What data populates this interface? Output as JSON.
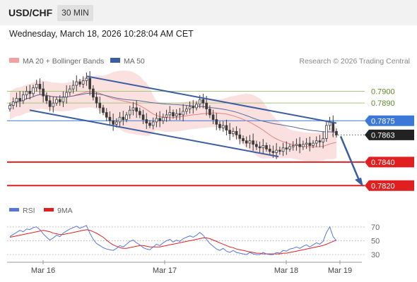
{
  "header": {
    "symbol": "USD/CHF",
    "timeframe": "30 MIN",
    "datetime": "Wednesday, March 18, 2026 10:28:04 AM CET"
  },
  "legend": {
    "ma20_bb": "MA 20 + Bollinger Bands",
    "ma50": "MA 50",
    "credit": "Research © 2026 Trading Central",
    "rsi": "RSI",
    "ma9": "9MA"
  },
  "colors": {
    "candle": "#3a3a3a",
    "bollinger_fill": "#f9d6d6",
    "ma20": "#e88080",
    "ma50": "#5a6b9a",
    "channel": "#3b5ea0",
    "resistance": "#a7c77d",
    "support": "#e02020",
    "current_line": "#3b78d8",
    "rsi": "#5577dd",
    "rsi_ma9": "#e02020"
  },
  "chart_data": [
    {
      "type": "candlestick",
      "title": "",
      "x_ticks": [
        "Mar 16",
        "Mar 17",
        "Mar 18",
        "Mar 19"
      ],
      "ylim": [
        0.781,
        0.792
      ],
      "levels": [
        {
          "label": "0.7900",
          "value": 0.79,
          "kind": "resistance"
        },
        {
          "label": "0.7890",
          "value": 0.789,
          "kind": "resistance"
        },
        {
          "label": "0.7875",
          "value": 0.7875,
          "kind": "resistance-highlight"
        },
        {
          "label": "0.7863",
          "value": 0.7863,
          "kind": "last-price"
        },
        {
          "label": "0.7840",
          "value": 0.784,
          "kind": "support"
        },
        {
          "label": "0.7820",
          "value": 0.782,
          "kind": "support"
        }
      ],
      "close_series": [
        0.7888,
        0.7891,
        0.7894,
        0.7892,
        0.7897,
        0.79,
        0.7898,
        0.7903,
        0.7906,
        0.7902,
        0.7896,
        0.7892,
        0.7887,
        0.789,
        0.7893,
        0.7891,
        0.7895,
        0.7899,
        0.7902,
        0.7905,
        0.7908,
        0.7906,
        0.7909,
        0.7911,
        0.7902,
        0.7895,
        0.789,
        0.7886,
        0.7882,
        0.7878,
        0.7875,
        0.7872,
        0.7874,
        0.7878,
        0.7876,
        0.788,
        0.7884,
        0.7886,
        0.7883,
        0.788,
        0.7876,
        0.7873,
        0.7871,
        0.7874,
        0.7877,
        0.7875,
        0.7878,
        0.788,
        0.7882,
        0.7879,
        0.7881,
        0.788,
        0.7883,
        0.7885,
        0.7887,
        0.7886,
        0.7889,
        0.7893,
        0.789,
        0.7885,
        0.788,
        0.7876,
        0.7872,
        0.7869,
        0.7871,
        0.7867,
        0.7864,
        0.7866,
        0.7863,
        0.786,
        0.7858,
        0.7856,
        0.7858,
        0.7855,
        0.7853,
        0.7852,
        0.7854,
        0.7851,
        0.7849,
        0.7848,
        0.785,
        0.7849,
        0.7852,
        0.7851,
        0.7853,
        0.7854,
        0.7855,
        0.7853,
        0.7855,
        0.7856,
        0.7854,
        0.7856,
        0.7858,
        0.7857,
        0.786,
        0.7871,
        0.7874,
        0.7866,
        0.7863
      ],
      "rsi": {
        "ylim": [
          25,
          80
        ],
        "ticks": [
          70,
          50,
          30
        ],
        "values": [
          56,
          59,
          62,
          65,
          63,
          67,
          66,
          69,
          70,
          66,
          60,
          55,
          51,
          54,
          58,
          56,
          61,
          64,
          67,
          69,
          71,
          68,
          70,
          72,
          61,
          52,
          46,
          43,
          40,
          38,
          37,
          36,
          39,
          43,
          41,
          45,
          49,
          51,
          47,
          44,
          40,
          38,
          37,
          41,
          45,
          43,
          47,
          50,
          52,
          48,
          51,
          49,
          53,
          55,
          57,
          55,
          58,
          62,
          58,
          52,
          46,
          42,
          38,
          36,
          39,
          35,
          33,
          36,
          33,
          32,
          31,
          30,
          33,
          31,
          30,
          30,
          33,
          31,
          30,
          30,
          33,
          32,
          36,
          35,
          38,
          39,
          41,
          39,
          42,
          44,
          41,
          44,
          47,
          45,
          49,
          62,
          70,
          56,
          50
        ],
        "ma9": [
          55,
          56,
          57,
          58,
          59,
          60,
          61,
          62,
          63,
          64,
          65,
          64,
          63,
          61,
          60,
          59,
          59,
          60,
          61,
          62,
          63,
          64,
          65,
          66,
          65,
          63,
          61,
          58,
          55,
          51,
          47,
          44,
          42,
          40,
          39,
          39,
          40,
          41,
          42,
          43,
          43,
          42,
          41,
          41,
          41,
          41,
          42,
          43,
          44,
          45,
          46,
          47,
          48,
          49,
          50,
          51,
          52,
          53,
          54,
          54,
          53,
          51,
          49,
          47,
          45,
          43,
          41,
          40,
          38,
          37,
          36,
          35,
          34,
          33,
          32,
          32,
          31,
          31,
          31,
          31,
          31,
          31,
          32,
          32,
          33,
          34,
          35,
          36,
          37,
          38,
          39,
          40,
          41,
          42,
          43,
          45,
          47,
          49,
          51
        ]
      }
    }
  ]
}
